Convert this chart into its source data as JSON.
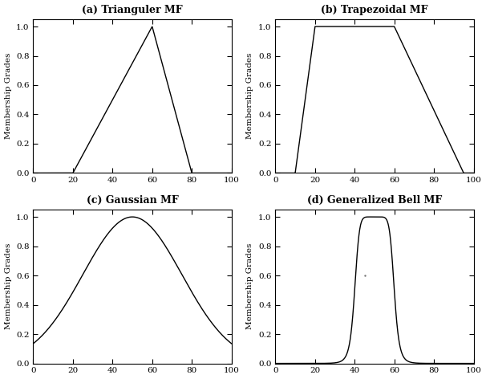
{
  "title_a": "(a) Trianguler MF",
  "title_b": "(b) Trapezoidal MF",
  "title_c": "(c) Gaussian MF",
  "title_d": "(d) Generalized Bell MF",
  "ylabel": "Membership Grades",
  "xlim": [
    0,
    100
  ],
  "ylim": [
    0,
    1.05
  ],
  "yticks": [
    0,
    0.2,
    0.4,
    0.6,
    0.8,
    1
  ],
  "xticks": [
    0,
    20,
    40,
    60,
    80,
    100
  ],
  "tri_params": [
    20,
    60,
    80
  ],
  "trap_params": [
    10,
    20,
    60,
    95
  ],
  "gauss_params": {
    "mean": 50,
    "sigma": 25
  },
  "gbell_params": {
    "a": 10,
    "b": 4,
    "c": 50
  },
  "line_color": "#000000",
  "bg_color": "#ffffff",
  "title_fontsize": 9,
  "label_fontsize": 7.5,
  "tick_fontsize": 7.5
}
